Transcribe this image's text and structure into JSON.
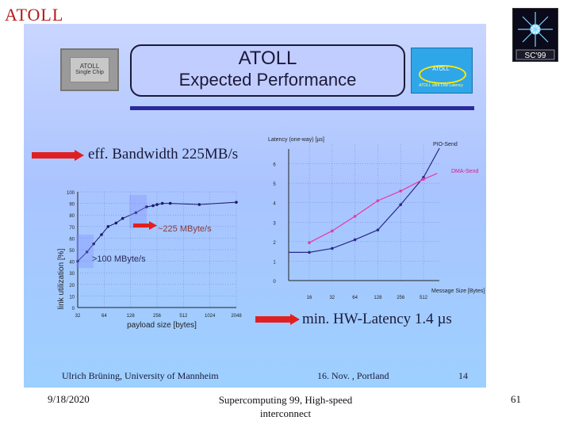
{
  "page": {
    "title": "ATOLL"
  },
  "slide": {
    "chip_text_line1": "ATOLL",
    "chip_text_line2": "Single Chip",
    "header_line1": "ATOLL",
    "header_line2": "Expected Performance",
    "atoll_logo_text": "ATOLL",
    "atoll_logo_caption": "ATOLL ultra Low Latency",
    "bandwidth_text": "eff. Bandwidth 225MB/s",
    "latency_text_prefix": "min. HW-Latency 1.4 ",
    "latency_text_unit": "µs",
    "footer_author": "Ulrich Brüning, University of Mannheim",
    "footer_date": "16. Nov. , Portland",
    "footer_number": "14"
  },
  "bottom": {
    "date": "9/18/2020",
    "title": "Supercomputing 99, High-speed interconnect",
    "page_number": "61"
  },
  "colors": {
    "accent_red": "#e02020",
    "bar_blue": "#2a2a9a"
  },
  "chart_data": [
    {
      "type": "line",
      "title": "",
      "xlabel": "payload size [bytes]",
      "ylabel": "link utilization [%]",
      "xticks": [
        "32",
        "64",
        "128",
        "256",
        "512",
        "1024",
        "2048"
      ],
      "yticks": [
        "0",
        "10",
        "20",
        "30",
        "40",
        "50",
        "60",
        "70",
        "80",
        "90",
        "100"
      ],
      "ylim": [
        0,
        100
      ],
      "annotations": [
        "~225 MByte/s",
        ">100 MByte/s"
      ],
      "series": [
        {
          "x_pos": [
            0,
            0.35,
            0.6,
            0.9,
            1.15,
            1.45,
            1.7,
            2.2,
            2.6,
            2.85,
            3.0,
            3.2,
            3.5,
            4.6,
            6.0
          ],
          "values": [
            40,
            48,
            55,
            63,
            70,
            73,
            77,
            82,
            87,
            88,
            89,
            90,
            90,
            89,
            91
          ]
        }
      ]
    },
    {
      "type": "line",
      "title": "",
      "xlabel": "Message Size [Bytes]",
      "ylabel": "Latency (one-way) [µs]",
      "xticks": [
        "16",
        "32",
        "64",
        "128",
        "256",
        "512"
      ],
      "yticks": [
        "0",
        "1",
        "2",
        "3",
        "4",
        "5",
        "6"
      ],
      "ylim": [
        0,
        7
      ],
      "series": [
        {
          "name": "PIO-Send",
          "x_pos": [
            -0.9,
            0,
            1,
            2,
            3,
            4,
            5,
            5.7
          ],
          "values": [
            1.45,
            1.45,
            1.65,
            2.1,
            2.6,
            3.9,
            5.3,
            6.8
          ]
        },
        {
          "name": "DMA-Send",
          "x_pos": [
            0,
            1,
            2,
            3,
            4,
            5,
            5.6
          ],
          "values": [
            1.95,
            2.55,
            3.3,
            4.1,
            4.6,
            5.2,
            5.5
          ]
        }
      ]
    }
  ]
}
